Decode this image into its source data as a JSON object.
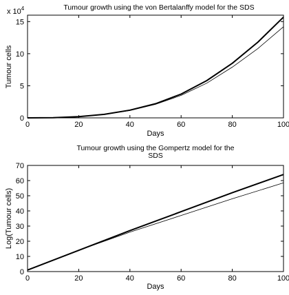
{
  "chart_data": [
    {
      "type": "line",
      "title": "Tumour   growth  using   the  von  Bertalanffy model   for  the  SDS",
      "xlabel": "Days",
      "ylabel": "Tumour cells",
      "multiplier_label": {
        "base": "x  10",
        "exponent": "4"
      },
      "xlim": [
        0,
        100
      ],
      "ylim": [
        0,
        16
      ],
      "xticks": [
        "0",
        "20",
        "40",
        "60",
        "80",
        "100"
      ],
      "yticks": [
        "0",
        "5",
        "10",
        "15"
      ],
      "grid": false,
      "legend": "none",
      "series": [
        {
          "color": "#000000",
          "width": 2.0,
          "x": [
            0,
            10,
            20,
            30,
            40,
            50,
            60,
            70,
            80,
            90,
            100
          ],
          "y": [
            0,
            0.02,
            0.18,
            0.55,
            1.2,
            2.2,
            3.7,
            5.8,
            8.5,
            11.8,
            15.7
          ]
        },
        {
          "color": "#000000",
          "width": 0.8,
          "x": [
            0,
            10,
            20,
            30,
            40,
            50,
            60,
            70,
            80,
            90,
            100
          ],
          "y": [
            0,
            0.02,
            0.18,
            0.55,
            1.15,
            2.1,
            3.5,
            5.4,
            7.9,
            10.8,
            14.2
          ]
        }
      ]
    },
    {
      "type": "line",
      "title": "Tumour   growth  using  the  Gompertz model   for  the",
      "title_line2": "SDS",
      "xlabel": "Days",
      "ylabel": "Log(Tumour cells)",
      "xlim": [
        0,
        100
      ],
      "ylim": [
        0,
        70
      ],
      "xticks": [
        "0",
        "20",
        "40",
        "60",
        "80",
        "100"
      ],
      "yticks": [
        "0",
        "10",
        "20",
        "30",
        "40",
        "50",
        "60",
        "70"
      ],
      "grid": false,
      "legend": "none",
      "series": [
        {
          "color": "#000000",
          "width": 2.0,
          "x": [
            0,
            20,
            40,
            60,
            80,
            100
          ],
          "y": [
            1,
            14,
            27,
            39.5,
            52,
            64
          ]
        },
        {
          "color": "#000000",
          "width": 0.8,
          "x": [
            0,
            20,
            40,
            60,
            80,
            100
          ],
          "y": [
            1,
            14,
            26,
            37,
            48,
            58.5
          ]
        }
      ]
    }
  ]
}
